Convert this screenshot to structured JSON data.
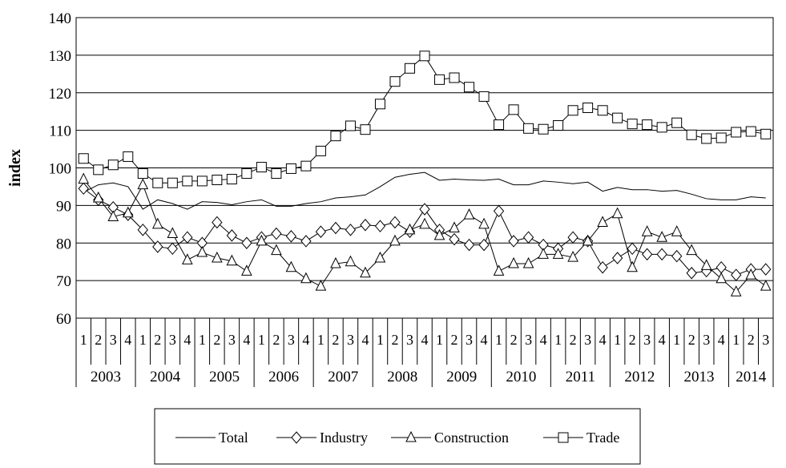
{
  "chart_data": {
    "type": "line",
    "ylabel": "index",
    "xlabel": "",
    "title": "",
    "ylim": [
      60,
      140
    ],
    "yticks": [
      60,
      70,
      80,
      90,
      100,
      110,
      120,
      130,
      140
    ],
    "grid": "horizontal",
    "legend_position": "bottom",
    "years": [
      "2003",
      "2004",
      "2005",
      "2006",
      "2007",
      "2008",
      "2009",
      "2010",
      "2011",
      "2012",
      "2013",
      "2014"
    ],
    "quarters": [
      "1",
      "2",
      "3",
      "4"
    ],
    "categories": [
      "2003 Q1",
      "2003 Q2",
      "2003 Q3",
      "2003 Q4",
      "2004 Q1",
      "2004 Q2",
      "2004 Q3",
      "2004 Q4",
      "2005 Q1",
      "2005 Q2",
      "2005 Q3",
      "2005 Q4",
      "2006 Q1",
      "2006 Q2",
      "2006 Q3",
      "2006 Q4",
      "2007 Q1",
      "2007 Q2",
      "2007 Q3",
      "2007 Q4",
      "2008 Q1",
      "2008 Q2",
      "2008 Q3",
      "2008 Q4",
      "2009 Q1",
      "2009 Q2",
      "2009 Q3",
      "2009 Q4",
      "2010 Q1",
      "2010 Q2",
      "2010 Q3",
      "2010 Q4",
      "2011 Q1",
      "2011 Q2",
      "2011 Q3",
      "2011 Q4",
      "2012 Q1",
      "2012 Q2",
      "2012 Q3",
      "2012 Q4",
      "2013 Q1",
      "2013 Q2",
      "2013 Q3",
      "2013 Q4",
      "2014 Q1",
      "2014 Q2",
      "2014 Q3"
    ],
    "series": [
      {
        "name": "Total",
        "marker": "none",
        "values": [
          93.5,
          95.5,
          96,
          95,
          89,
          91.5,
          90.5,
          89,
          91,
          90.8,
          90.2,
          91,
          91.5,
          89.8,
          89.8,
          90.5,
          91,
          92,
          92.3,
          92.8,
          95,
          97.5,
          98.3,
          98.8,
          96.7,
          97,
          96.8,
          96.7,
          97,
          95.5,
          95.5,
          96.5,
          96.2,
          95.8,
          96.2,
          93.8,
          94.8,
          94.2,
          94.2,
          93.8,
          94,
          93,
          91.8,
          91.5,
          91.5,
          92.3,
          92
        ]
      },
      {
        "name": "Industry",
        "marker": "diamond",
        "values": [
          94.5,
          91.5,
          89.5,
          87.5,
          83.5,
          79,
          78.5,
          81.5,
          80,
          85.5,
          82,
          80,
          81.5,
          82.5,
          81.8,
          80.5,
          83,
          84,
          83.5,
          84.8,
          84.5,
          85.5,
          83,
          89,
          83.5,
          81,
          79.5,
          79.5,
          88.5,
          80.5,
          81.5,
          79.5,
          78.5,
          81.5,
          80.5,
          73.5,
          76,
          78.5,
          77,
          77,
          76.5,
          72,
          72.5,
          73.5,
          71.5,
          73,
          73
        ]
      },
      {
        "name": "Construction",
        "marker": "triangle",
        "values": [
          97,
          92,
          87,
          88,
          95.5,
          85,
          82.5,
          75.5,
          77.5,
          76,
          75.2,
          72.5,
          80.5,
          78,
          73.5,
          70.5,
          68.5,
          74.5,
          75,
          72,
          76,
          80.5,
          83.5,
          85,
          82,
          84,
          87.5,
          85,
          72.5,
          74.5,
          74.5,
          77,
          77,
          76.2,
          80.5,
          85.5,
          87.8,
          73.5,
          83,
          81.5,
          83,
          78,
          74,
          70.5,
          67,
          71.5,
          68.5
        ]
      },
      {
        "name": "Trade",
        "marker": "square",
        "values": [
          102.5,
          99.5,
          100.8,
          103,
          98.5,
          96,
          96,
          96.5,
          96.5,
          96.8,
          97,
          98.5,
          100.2,
          98.5,
          99.8,
          100.5,
          104.5,
          108.5,
          111.2,
          110.2,
          117,
          123,
          126.5,
          129.8,
          123.5,
          124,
          121.5,
          119,
          111.5,
          115.5,
          110.5,
          110.3,
          111.3,
          115.3,
          116,
          115.3,
          113.3,
          111.7,
          111.5,
          110.8,
          112,
          108.8,
          107.8,
          108,
          109.5,
          109.7,
          109
        ]
      }
    ]
  }
}
